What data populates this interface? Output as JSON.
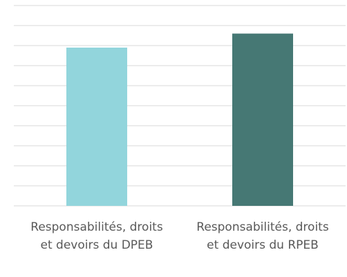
{
  "chart_data": {
    "type": "bar",
    "categories": [
      "Responsabilités, droits et devoirs du DPEB",
      "Responsabilités, droits et devoirs du RPEB"
    ],
    "values": [
      7.9,
      8.6
    ],
    "colors": [
      "#92d5dc",
      "#467874"
    ],
    "ylim": [
      0,
      10
    ],
    "yticks": [
      0,
      1,
      2,
      3,
      4,
      5,
      6,
      7,
      8,
      9,
      10
    ],
    "grid": true
  }
}
